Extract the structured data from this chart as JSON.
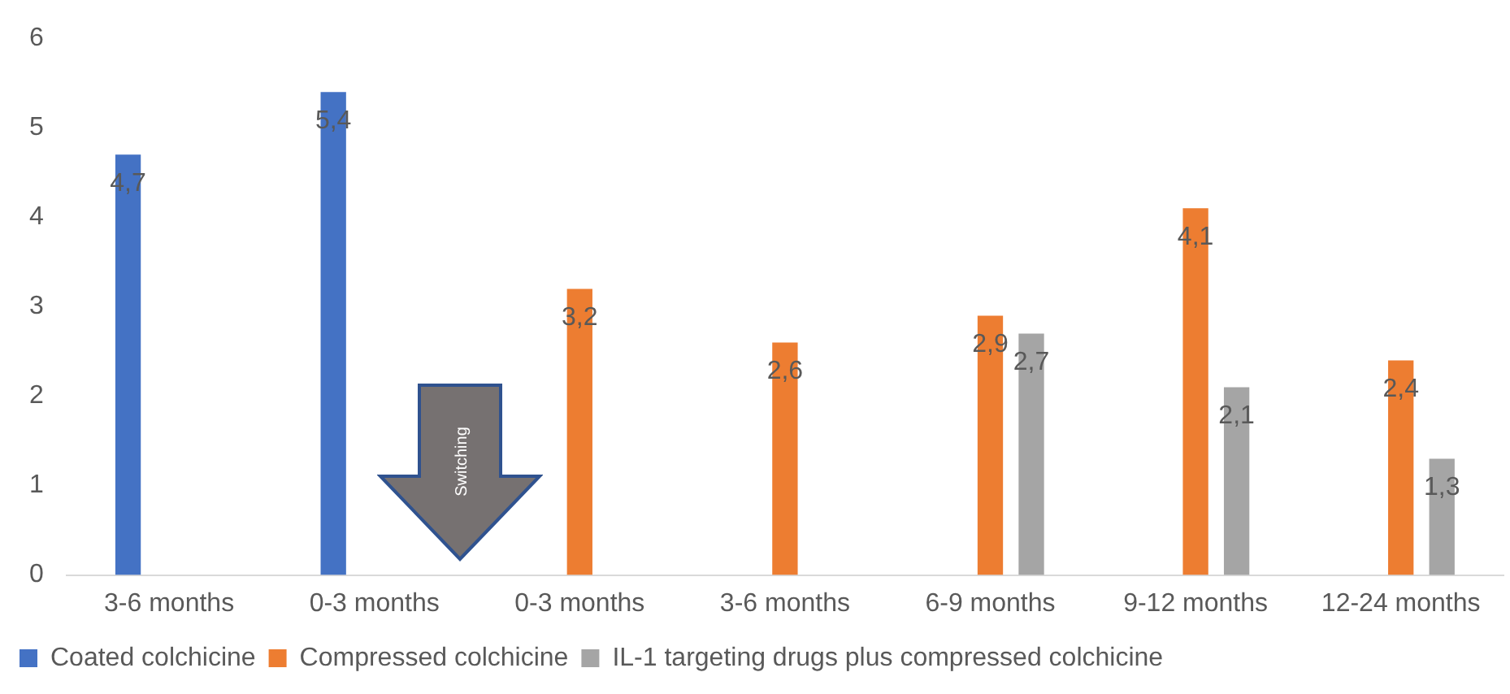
{
  "chart_data": {
    "type": "bar",
    "categories": [
      "3-6 months",
      "0-3 months",
      "0-3 months",
      "3-6 months",
      "6-9 months",
      "9-12 months",
      "12-24 months"
    ],
    "series": [
      {
        "name": "Coated colchicine",
        "color": "#4472c4",
        "values": [
          4.7,
          5.4,
          null,
          null,
          null,
          null,
          null
        ],
        "value_labels": [
          "4,7",
          "5,4",
          null,
          null,
          null,
          null,
          null
        ]
      },
      {
        "name": "Compressed colchicine",
        "color": "#ed7d31",
        "values": [
          null,
          null,
          3.2,
          2.6,
          2.9,
          4.1,
          2.4
        ],
        "value_labels": [
          null,
          null,
          "3,2",
          "2,6",
          "2,9",
          "4,1",
          "2,4"
        ]
      },
      {
        "name": "IL-1 targeting drugs plus compressed colchicine",
        "color": "#a5a5a5",
        "values": [
          null,
          null,
          null,
          null,
          2.7,
          2.1,
          1.3
        ],
        "value_labels": [
          null,
          null,
          null,
          null,
          "2,7",
          "2,1",
          "1,3"
        ]
      }
    ],
    "ylim": [
      0,
      6
    ],
    "yticks": [
      0,
      1,
      2,
      3,
      4,
      5,
      6
    ],
    "grid": false,
    "legend": "bottom",
    "annotations": [
      "Switching"
    ]
  }
}
